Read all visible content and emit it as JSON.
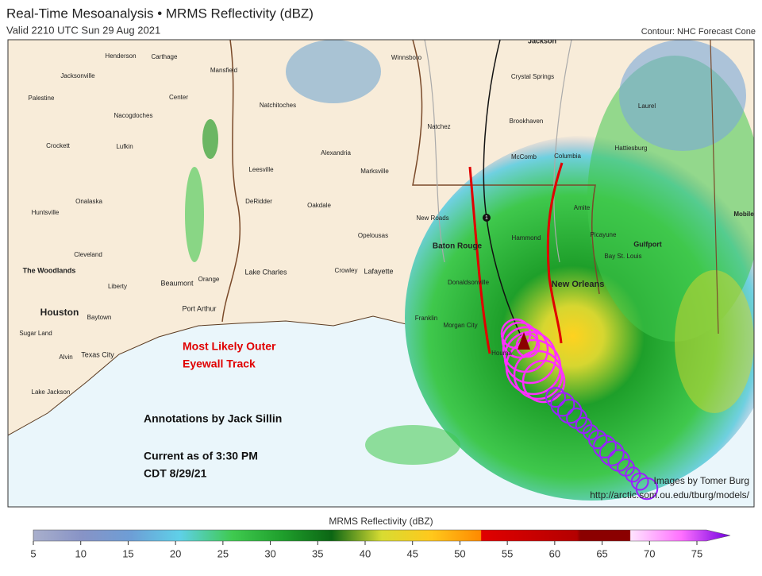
{
  "header": {
    "title": "Real-Time Mesoanalysis • MRMS Reflectivity (dBZ)",
    "valid": "Valid 2210 UTC Sun 29 Aug 2021",
    "contour": "Contour: NHC Forecast Cone"
  },
  "places": [
    "Henderson",
    "Carthage",
    "Jacksonville",
    "Mansfield",
    "Winnsboro",
    "Jackson",
    "Crystal Springs",
    "Palestine",
    "Center",
    "Natchitoches",
    "Nacogdoches",
    "Natchez",
    "Brookhaven",
    "Laurel",
    "Crockett",
    "Lufkin",
    "Alexandria",
    "McComb",
    "Columbia",
    "Hattiesburg",
    "Leesville",
    "Marksville",
    "DeRidder",
    "Oakdale",
    "New Roads",
    "Amite",
    "Mobile",
    "Huntsville",
    "Onalaska",
    "Opelousas",
    "Hammond",
    "Picayune",
    "Gulfport",
    "Baton Rouge",
    "Cleveland",
    "Bay St. Louis",
    "The Woodlands",
    "Lake Charles",
    "Crowley",
    "Lafayette",
    "Liberty",
    "Beaumont",
    "Orange",
    "Donaldsonville",
    "New Orleans",
    "Houston",
    "Port Arthur",
    "Baytown",
    "Franklin",
    "Morgan City",
    "Sugar Land",
    "Alvin",
    "Texas City",
    "Houma",
    "Lake Jackson"
  ],
  "forecast_point": "1",
  "annotations": {
    "track_line1": "Most Likely Outer",
    "track_line2": "Eyewall Track",
    "author": "Annotations by Jack Sillin",
    "current_line1": "Current as of 3:30 PM",
    "current_line2": "CDT 8/29/21",
    "credit": "Images by Tomer Burg",
    "url": "http://arctic.som.ou.edu/tburg/models/"
  },
  "colorbar": {
    "label": "MRMS Reflectivity (dBZ)",
    "ticks": [
      5,
      10,
      15,
      20,
      25,
      30,
      35,
      40,
      45,
      50,
      55,
      60,
      65,
      70,
      75
    ]
  }
}
